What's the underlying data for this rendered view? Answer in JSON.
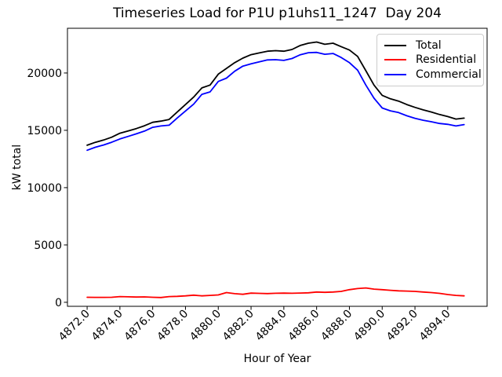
{
  "figure": {
    "background": "#ffffff"
  },
  "chart_data": {
    "type": "line",
    "title": "Timeseries Load for P1U p1uhs11_1247  Day 204",
    "xlabel": "Hour of Year",
    "ylabel": "kW total",
    "xlim": [
      4870.8,
      4896.4
    ],
    "ylim": [
      -350,
      23900
    ],
    "grid": false,
    "legend_position": "upper right",
    "x_ticks": {
      "values": [
        4872,
        4874,
        4876,
        4878,
        4880,
        4882,
        4884,
        4886,
        4888,
        4890,
        4892,
        4894
      ],
      "labels": [
        "4872.0",
        "4874.0",
        "4876.0",
        "4878.0",
        "4880.0",
        "4882.0",
        "4884.0",
        "4886.0",
        "4888.0",
        "4890.0",
        "4892.0",
        "4894.0"
      ]
    },
    "y_ticks": {
      "values": [
        0,
        5000,
        10000,
        15000,
        20000
      ],
      "labels": [
        "0",
        "5000",
        "10000",
        "15000",
        "20000"
      ]
    },
    "x": [
      4872.0,
      4872.5,
      4873.0,
      4873.5,
      4874.0,
      4874.5,
      4875.0,
      4875.5,
      4876.0,
      4876.5,
      4877.0,
      4877.5,
      4878.0,
      4878.5,
      4879.0,
      4879.5,
      4880.0,
      4880.5,
      4881.0,
      4881.5,
      4882.0,
      4882.5,
      4883.0,
      4883.5,
      4884.0,
      4884.5,
      4885.0,
      4885.5,
      4886.0,
      4886.5,
      4887.0,
      4887.5,
      4888.0,
      4888.5,
      4889.0,
      4889.5,
      4890.0,
      4890.5,
      4891.0,
      4891.5,
      4892.0,
      4892.5,
      4893.0,
      4893.5,
      4894.0,
      4894.5,
      4895.0
    ],
    "series": [
      {
        "name": "Total",
        "color": "#000000",
        "values": [
          13700,
          13950,
          14150,
          14400,
          14750,
          14950,
          15150,
          15400,
          15700,
          15800,
          15950,
          16600,
          17250,
          17900,
          18700,
          18950,
          19900,
          20400,
          20900,
          21300,
          21600,
          21750,
          21900,
          21950,
          21900,
          22050,
          22400,
          22600,
          22700,
          22500,
          22600,
          22300,
          22000,
          21450,
          20200,
          18950,
          18050,
          17750,
          17550,
          17250,
          17000,
          16780,
          16600,
          16380,
          16200,
          15980,
          16060
        ]
      },
      {
        "name": "Residential",
        "color": "#ff0000",
        "values": [
          440,
          430,
          430,
          440,
          500,
          480,
          460,
          470,
          440,
          420,
          500,
          520,
          560,
          620,
          560,
          600,
          640,
          850,
          750,
          700,
          800,
          780,
          760,
          790,
          800,
          790,
          810,
          830,
          900,
          870,
          900,
          950,
          1100,
          1200,
          1250,
          1150,
          1100,
          1050,
          1000,
          980,
          950,
          900,
          850,
          780,
          680,
          600,
          560
        ]
      },
      {
        "name": "Commercial",
        "color": "#0000ff",
        "values": [
          13260,
          13520,
          13720,
          13960,
          14250,
          14470,
          14690,
          14930,
          15260,
          15380,
          15450,
          16080,
          16690,
          17280,
          18140,
          18350,
          19260,
          19550,
          20150,
          20600,
          20800,
          20970,
          21140,
          21160,
          21100,
          21260,
          21590,
          21770,
          21800,
          21630,
          21700,
          21350,
          20900,
          20250,
          18950,
          17800,
          16950,
          16700,
          16550,
          16270,
          16050,
          15880,
          15750,
          15600,
          15520,
          15380,
          15500
        ]
      }
    ]
  }
}
